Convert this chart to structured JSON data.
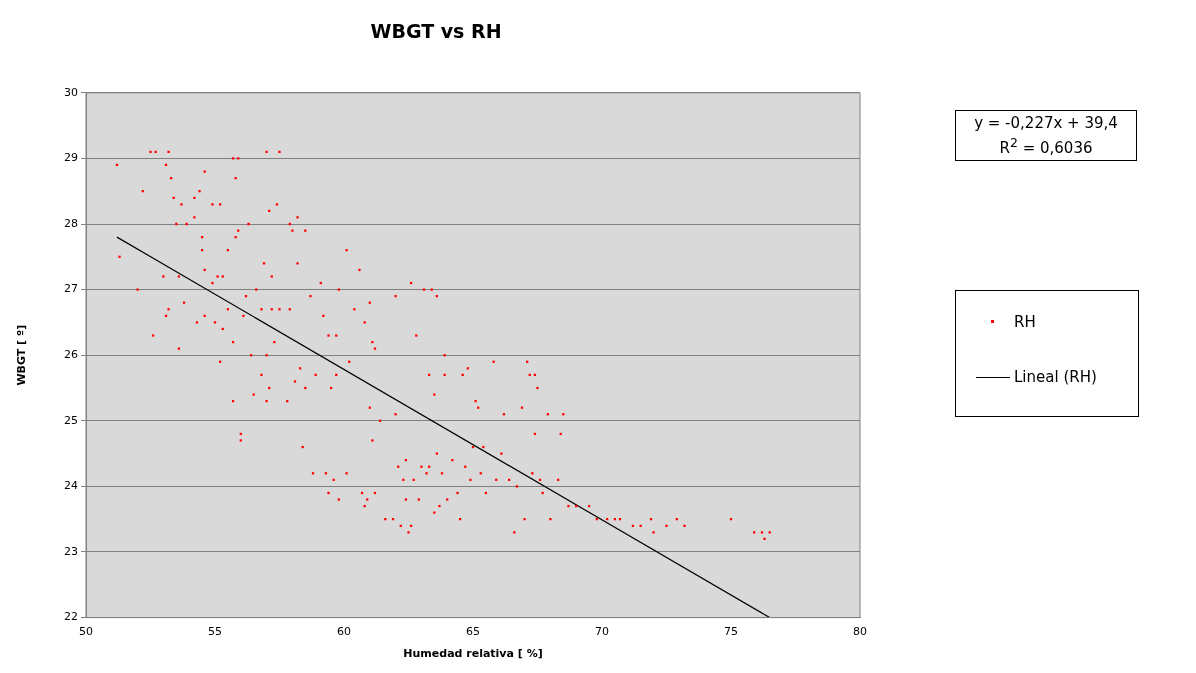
{
  "chart_data": {
    "type": "scatter",
    "title": "WBGT vs RH",
    "xlabel": "Humedad relativa [ %]",
    "ylabel": "WBGT [ º]",
    "xlim": [
      50,
      80
    ],
    "xticks": [
      50,
      55,
      60,
      65,
      70,
      75,
      80
    ],
    "ylim": [
      22,
      30
    ],
    "yticks": [
      22,
      23,
      24,
      25,
      26,
      27,
      28,
      29,
      30
    ],
    "grid": "y",
    "legend": "right",
    "annotations": [
      "y = -0,227x + 39,4",
      "R$^{2}$ = 0,6036"
    ],
    "series": [
      {
        "name": "RH",
        "color": "#ff0000",
        "marker": "square",
        "x": [
          51.2,
          51.3,
          52.0,
          52.2,
          52.5,
          52.7,
          52.6,
          53.0,
          53.1,
          53.2,
          53.1,
          53.2,
          53.3,
          53.4,
          53.5,
          53.6,
          53.6,
          53.7,
          53.8,
          53.9,
          54.2,
          54.2,
          54.3,
          54.4,
          54.5,
          54.5,
          54.6,
          54.6,
          54.6,
          54.9,
          54.9,
          55.0,
          55.1,
          55.2,
          55.3,
          55.3,
          55.5,
          55.5,
          55.2,
          55.7,
          55.7,
          55.7,
          55.9,
          55.8,
          55.8,
          55.9,
          56.0,
          56.0,
          56.1,
          56.2,
          56.3,
          56.4,
          56.5,
          56.6,
          56.8,
          56.8,
          56.9,
          57.0,
          57.0,
          57.0,
          57.1,
          57.1,
          57.2,
          57.2,
          57.3,
          57.4,
          57.5,
          57.5,
          57.8,
          57.9,
          57.9,
          58.0,
          58.1,
          58.2,
          58.2,
          58.3,
          58.4,
          58.5,
          58.5,
          58.7,
          58.8,
          58.9,
          59.1,
          59.2,
          59.3,
          59.4,
          59.4,
          59.5,
          59.6,
          59.7,
          59.7,
          59.8,
          59.8,
          60.1,
          60.1,
          60.2,
          60.4,
          60.6,
          60.7,
          60.8,
          60.8,
          60.9,
          61.0,
          61.0,
          61.1,
          61.1,
          61.2,
          61.2,
          61.4,
          61.6,
          61.9,
          62.0,
          62.0,
          62.1,
          62.2,
          62.3,
          62.4,
          62.4,
          62.5,
          62.6,
          62.6,
          62.7,
          62.8,
          62.9,
          63.0,
          63.1,
          63.2,
          63.3,
          63.3,
          63.4,
          63.5,
          63.5,
          63.6,
          63.6,
          63.7,
          63.8,
          63.9,
          63.9,
          64.0,
          64.2,
          64.4,
          64.5,
          64.6,
          64.7,
          64.8,
          64.9,
          65.0,
          65.1,
          65.2,
          65.3,
          65.4,
          65.5,
          65.8,
          65.9,
          66.1,
          66.2,
          66.4,
          66.6,
          66.7,
          66.9,
          67.0,
          67.1,
          67.2,
          67.3,
          67.4,
          67.5,
          67.4,
          67.6,
          67.7,
          67.9,
          68.0,
          68.3,
          68.4,
          68.5,
          68.7,
          69.0,
          69.5,
          69.8,
          70.2,
          70.5,
          70.7,
          71.2,
          71.5,
          71.9,
          72.0,
          72.5,
          72.9,
          73.2,
          75.0,
          75.9,
          76.2,
          76.3,
          76.5
        ],
        "values": [
          28.9,
          27.5,
          27.0,
          28.5,
          29.1,
          29.1,
          26.3,
          27.2,
          26.6,
          26.7,
          28.9,
          29.1,
          28.7,
          28.4,
          28.0,
          27.2,
          26.1,
          28.3,
          26.8,
          28.0,
          28.4,
          28.1,
          26.5,
          28.5,
          27.6,
          27.8,
          28.8,
          27.3,
          26.6,
          27.1,
          28.3,
          26.5,
          27.2,
          28.3,
          27.2,
          26.4,
          26.7,
          27.6,
          25.9,
          26.2,
          25.3,
          29.0,
          29.0,
          28.7,
          27.8,
          27.9,
          24.8,
          24.7,
          26.6,
          26.9,
          28.0,
          26.0,
          25.4,
          27.0,
          26.7,
          25.7,
          27.4,
          29.1,
          26.0,
          25.3,
          25.5,
          28.2,
          26.7,
          27.2,
          26.2,
          28.3,
          26.7,
          29.1,
          25.3,
          28.0,
          26.7,
          27.9,
          25.6,
          28.1,
          27.4,
          25.8,
          24.6,
          25.5,
          27.9,
          26.9,
          24.2,
          25.7,
          27.1,
          26.6,
          24.2,
          23.9,
          26.3,
          25.5,
          24.1,
          25.7,
          26.3,
          23.8,
          27.0,
          27.6,
          24.2,
          25.9,
          26.7,
          27.3,
          23.9,
          23.7,
          26.5,
          23.8,
          26.8,
          25.2,
          24.7,
          26.2,
          26.1,
          23.9,
          25.0,
          23.5,
          23.5,
          25.1,
          26.9,
          24.3,
          23.4,
          24.1,
          24.4,
          23.8,
          23.3,
          27.1,
          23.4,
          24.1,
          26.3,
          23.8,
          24.3,
          27.0,
          24.2,
          25.7,
          24.3,
          27.0,
          23.6,
          25.4,
          26.9,
          24.5,
          23.7,
          24.2,
          26.0,
          25.7,
          23.8,
          24.4,
          23.9,
          23.5,
          25.7,
          24.3,
          25.8,
          24.1,
          24.6,
          25.3,
          25.2,
          24.2,
          24.6,
          23.9,
          25.9,
          24.1,
          24.5,
          25.1,
          24.1,
          23.3,
          24.0,
          25.2,
          23.5,
          25.9,
          25.7,
          24.2,
          25.7,
          25.5,
          24.8,
          24.1,
          23.9,
          25.1,
          23.5,
          24.1,
          24.8,
          25.1,
          23.7,
          23.7,
          23.7,
          23.5,
          23.5,
          23.5,
          23.5,
          23.4,
          23.4,
          23.5,
          23.3,
          23.4,
          23.5,
          23.4,
          23.5,
          23.3,
          23.3,
          23.2,
          23.3
        ]
      },
      {
        "name": "Lineal (RH)",
        "type": "line",
        "color": "#000000",
        "line_style": "solid",
        "marker": "none",
        "x": [
          51.2,
          76.5
        ],
        "values": [
          27.8,
          22.0
        ]
      }
    ]
  }
}
